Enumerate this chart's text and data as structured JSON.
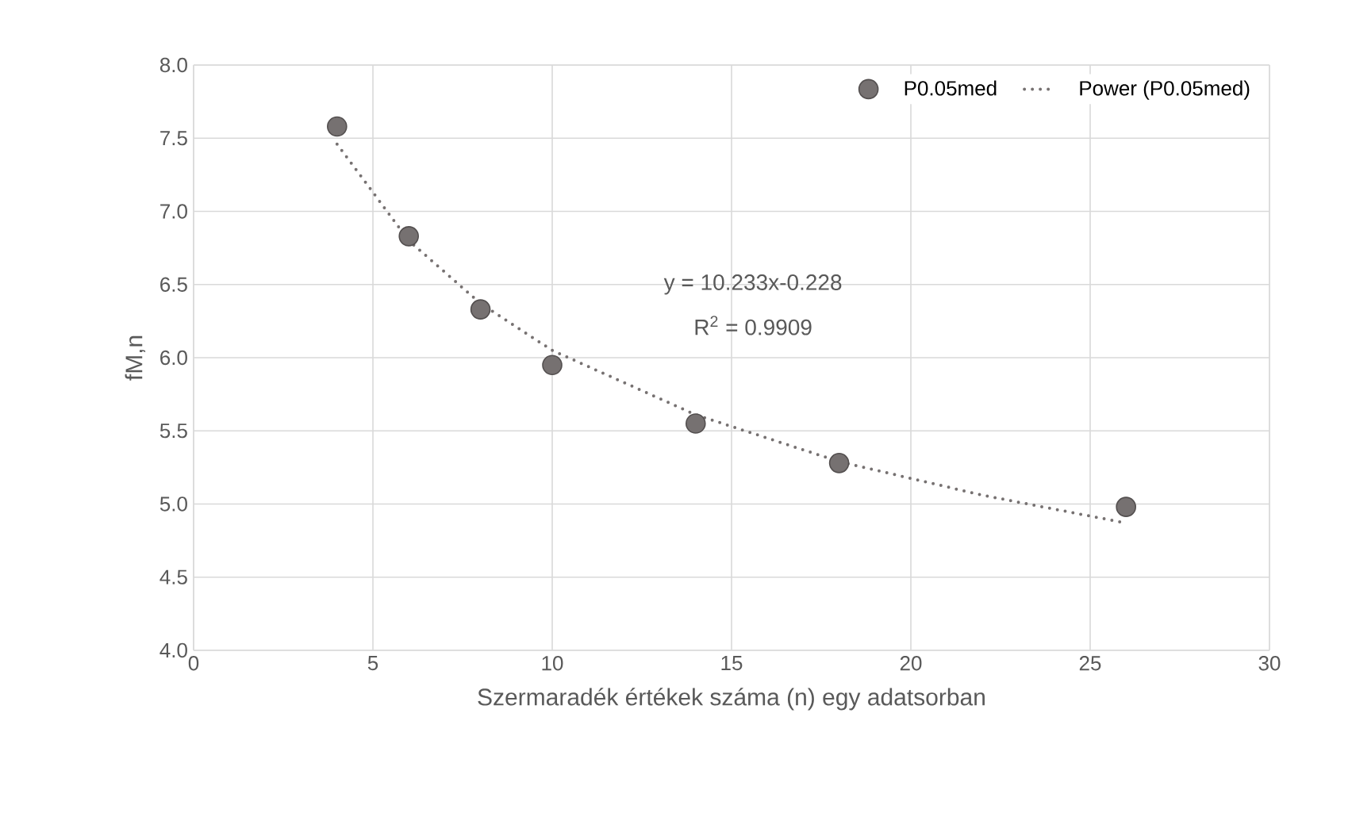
{
  "chart_data": {
    "type": "scatter",
    "xlabel": "Szermaradék értékek száma (n) egy adatsorban",
    "ylabel": "fM,n",
    "series": [
      {
        "name": "P0.05med",
        "type": "scatter",
        "color": "#767171",
        "marker": "circle",
        "x": [
          4,
          6,
          8,
          10,
          14,
          18,
          26
        ],
        "values": [
          7.58,
          6.83,
          6.33,
          5.95,
          5.55,
          5.28,
          4.98
        ]
      },
      {
        "name": "Power (P0.05med)",
        "type": "line",
        "color": "#767171",
        "line_style": "dotted",
        "marker": "none",
        "x": [
          4,
          6,
          8,
          10,
          14,
          18,
          22,
          26
        ],
        "values": [
          7.46,
          6.8,
          6.37,
          6.05,
          5.61,
          5.29,
          5.06,
          4.87
        ]
      }
    ],
    "annotations": [
      "y = 10.233x-0.228",
      "R$^{2}$ = 0.9909"
    ],
    "xlim": [
      0,
      30
    ],
    "xticks": [
      0,
      5,
      10,
      15,
      20,
      25,
      30
    ],
    "ylim": [
      4,
      8
    ],
    "yticks": [
      {
        "value": 4,
        "label": "4.0"
      },
      {
        "value": 4.5,
        "label": "4.5"
      },
      {
        "value": 5,
        "label": "5.0"
      },
      {
        "value": 5.5,
        "label": "5.5"
      },
      {
        "value": 6,
        "label": "6.0"
      },
      {
        "value": 6.5,
        "label": "6.5"
      },
      {
        "value": 7,
        "label": "7.0"
      },
      {
        "value": 7.5,
        "label": "7.5"
      },
      {
        "value": 8,
        "label": "8.0"
      }
    ],
    "grid": true,
    "legend": "top right"
  }
}
